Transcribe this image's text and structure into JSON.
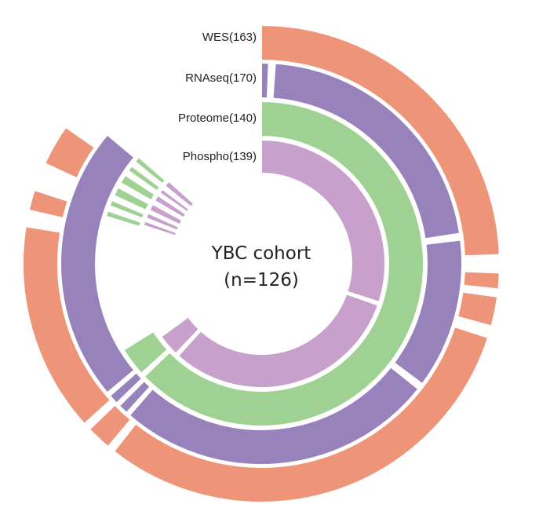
{
  "chart_data": {
    "type": "sunburst",
    "center_label": [
      "YBC cohort",
      "(n=126)"
    ],
    "rings": [
      {
        "name": "WES(163)",
        "color": "#ee9478",
        "segments": [
          [
            0.0,
            0.244
          ],
          [
            0.256,
            0.267
          ],
          [
            0.272,
            0.292
          ],
          [
            0.3,
            0.606
          ],
          [
            0.611,
            0.628
          ],
          [
            0.633,
            0.775
          ],
          [
            0.786,
            0.8
          ],
          [
            0.819,
            0.847
          ]
        ]
      },
      {
        "name": "RNAseq(170)",
        "color": "#9882bc",
        "segments": [
          [
            0.0,
            0.006
          ],
          [
            0.011,
            0.226
          ],
          [
            0.231,
            0.352
          ],
          [
            0.357,
            0.614
          ],
          [
            0.617,
            0.625
          ],
          [
            0.628,
            0.636
          ],
          [
            0.639,
            0.861
          ]
        ]
      },
      {
        "name": "Proteome(140)",
        "color": "#9fd192",
        "segments": [
          [
            0.0,
            0.628
          ],
          [
            0.632,
            0.661
          ],
          [
            0.797,
            0.803
          ],
          [
            0.808,
            0.814
          ],
          [
            0.819,
            0.828
          ],
          [
            0.833,
            0.842
          ],
          [
            0.847,
            0.853
          ],
          [
            0.858,
            0.864
          ]
        ]
      },
      {
        "name": "Phospho(139)",
        "color": "#c7a0cc",
        "segments": [
          [
            0.0,
            0.3
          ],
          [
            0.304,
            0.617
          ],
          [
            0.621,
            0.65
          ],
          [
            0.8,
            0.806
          ],
          [
            0.81,
            0.817
          ],
          [
            0.821,
            0.83
          ],
          [
            0.835,
            0.843
          ],
          [
            0.847,
            0.853
          ],
          [
            0.858,
            0.866
          ]
        ]
      }
    ]
  }
}
